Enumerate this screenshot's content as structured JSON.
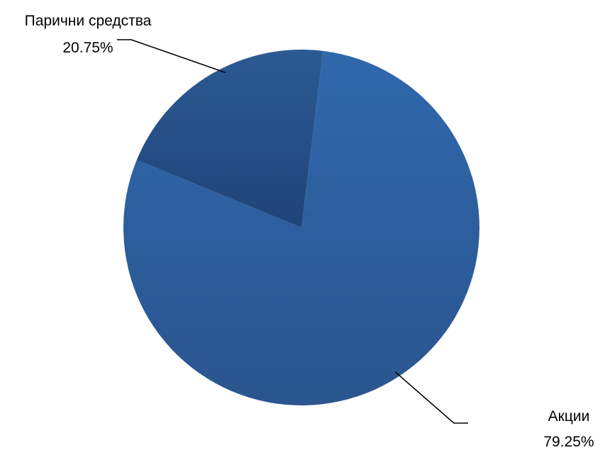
{
  "chart_data": {
    "type": "pie",
    "categories": [
      "Акции",
      "Парични средства"
    ],
    "values": [
      79.25,
      20.75
    ],
    "data_labels": [
      {
        "category": "Акции",
        "percent": "79.25%"
      },
      {
        "category": "Парични средства",
        "percent": "20.75%"
      }
    ],
    "start_angle_deg": 7,
    "direction": "clockwise",
    "title": "",
    "legend": "none",
    "colors": {
      "slice_light": [
        "#3068ac",
        "#2a558f"
      ],
      "slice_dark": [
        "#2c5a94",
        "#1f4478"
      ]
    }
  }
}
